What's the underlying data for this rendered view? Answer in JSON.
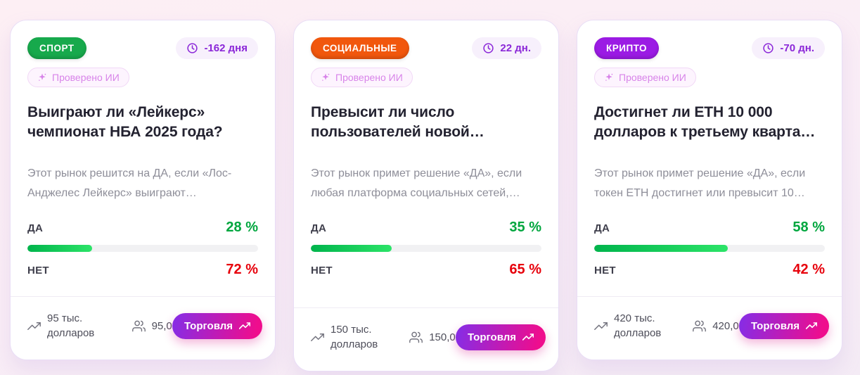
{
  "theme": {
    "page_bg_top": "#fdeff4",
    "page_bg_bottom": "#f4ebf5",
    "card_border": "#e9def6",
    "yes_color": "#00a63e",
    "no_color": "#e7000b",
    "bar_fill_start": "#00b44c",
    "bar_fill_end": "#2ce468",
    "deadline_color": "#8b27d8",
    "verified_color": "#d884e9",
    "trade_gradient_start": "#8a2be2",
    "trade_gradient_end": "#ef0d8d"
  },
  "cards": [
    {
      "category": {
        "label": "СПОРТ",
        "color": "#17a94c"
      },
      "verified_label": "Проверено ИИ",
      "deadline_label": "-162 дня",
      "title": "Выиграют ли «Лейкерс» чемпионат НБА 2025 года?",
      "description": "Этот рынок решится на ДА, если «Лос-Анджелес Лейкерс» выиграют…",
      "yes_label": "ДА",
      "yes_value": "28 %",
      "yes_percent": 28,
      "no_label": "НЕТ",
      "no_value": "72 %",
      "volume": "95 тыс. долларов",
      "participants": "95,0 K",
      "trade_label": "Торговля"
    },
    {
      "category": {
        "label": "СОЦИАЛЬНЫЕ",
        "color": "#f1570d"
      },
      "verified_label": "Проверено ИИ",
      "deadline_label": "22 дн.",
      "title": "Превысит ли число пользователей новой…",
      "description": "Этот рынок примет решение «ДА», если любая платформа социальных сетей,…",
      "yes_label": "ДА",
      "yes_value": "35 %",
      "yes_percent": 35,
      "no_label": "НЕТ",
      "no_value": "65 %",
      "volume": "150 тыс. долларов",
      "participants": "150,0 K",
      "trade_label": "Торговля"
    },
    {
      "category": {
        "label": "КРИПТО",
        "color": "#9b1be4"
      },
      "verified_label": "Проверено ИИ",
      "deadline_label": "-70 дн.",
      "title": "Достигнет ли ETH 10 000 долларов к третьему кварта…",
      "description": "Этот рынок примет решение «ДА», если токен ETH достигнет или превысит 10…",
      "yes_label": "ДА",
      "yes_value": "58 %",
      "yes_percent": 58,
      "no_label": "НЕТ",
      "no_value": "42 %",
      "volume": "420 тыс. долларов",
      "participants": "420,0 K",
      "trade_label": "Торговля"
    }
  ]
}
